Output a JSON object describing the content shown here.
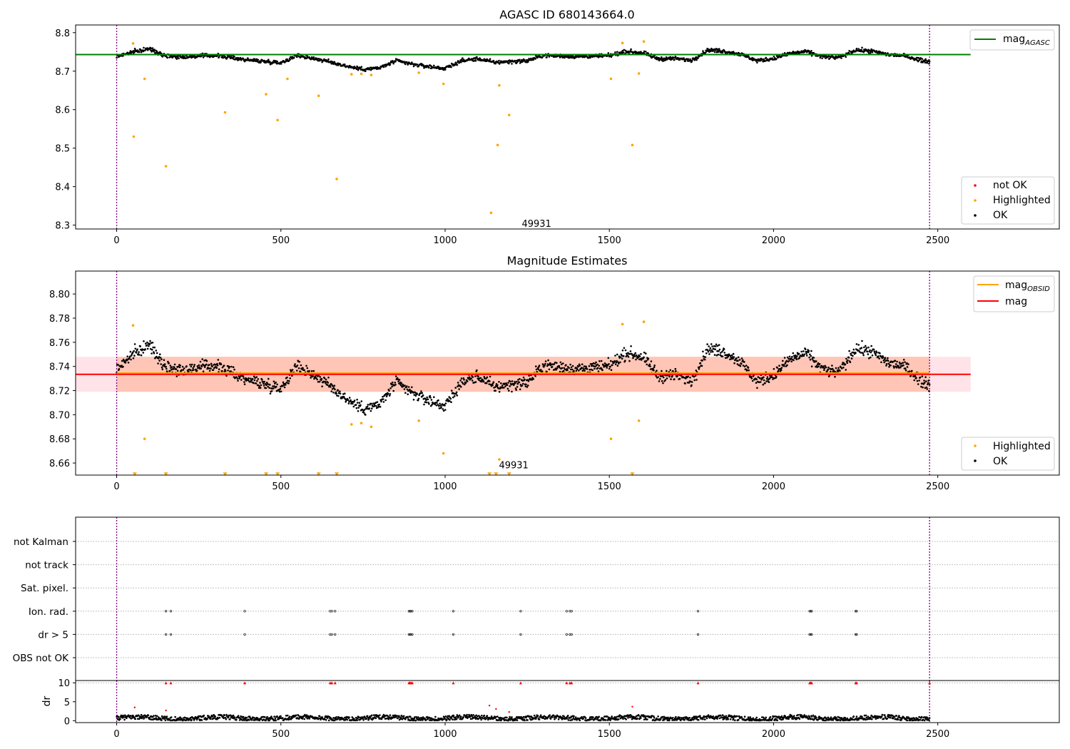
{
  "chart_data": [
    {
      "type": "scatter",
      "title": "AGASC ID 680143664.0",
      "xlim": [
        -125,
        2870
      ],
      "ylim": [
        8.29,
        8.82
      ],
      "x_ticks": [
        0,
        500,
        1000,
        1500,
        2000,
        2500
      ],
      "x_tick_labels": [
        "0",
        "500",
        "1000",
        "1500",
        "2000",
        "2500"
      ],
      "y_ticks": [
        8.3,
        8.4,
        8.5,
        8.6,
        8.7,
        8.8
      ],
      "y_tick_labels": [
        "8.3",
        "8.4",
        "8.5",
        "8.6",
        "8.7",
        "8.8"
      ],
      "vlines": [
        0,
        2475
      ],
      "vline_color": "#800080",
      "hline": {
        "name": "mag_AGASC",
        "y": 8.743,
        "x_end": 2600,
        "color": "#008000"
      },
      "legend_upper": {
        "position": "upper right",
        "entries": [
          {
            "main": "mag",
            "sub": "AGASC",
            "color": "#008000"
          }
        ]
      },
      "legend_lower": {
        "position": "lower right",
        "entries": [
          {
            "label": "not OK",
            "color": "#ff0000"
          },
          {
            "label": "Highlighted",
            "color": "#ffa500"
          },
          {
            "label": "OK",
            "color": "#000000"
          }
        ]
      },
      "annotation": {
        "text": "49931",
        "x": 1190,
        "y": 8.305
      },
      "ok_trend_x": [
        0,
        50,
        100,
        150,
        200,
        300,
        400,
        500,
        550,
        600,
        650,
        700,
        750,
        800,
        850,
        900,
        950,
        1000,
        1050,
        1100,
        1150,
        1200,
        1250,
        1300,
        1400,
        1500,
        1550,
        1600,
        1650,
        1700,
        1750,
        1800,
        1850,
        1900,
        1950,
        2000,
        2050,
        2100,
        2150,
        2200,
        2250,
        2300,
        2350,
        2400,
        2450,
        2475
      ],
      "ok_trend_y": [
        8.738,
        8.75,
        8.758,
        8.74,
        8.737,
        8.741,
        8.729,
        8.722,
        8.741,
        8.733,
        8.724,
        8.713,
        8.705,
        8.708,
        8.727,
        8.718,
        8.712,
        8.707,
        8.727,
        8.732,
        8.723,
        8.725,
        8.727,
        8.741,
        8.738,
        8.74,
        8.751,
        8.748,
        8.732,
        8.733,
        8.728,
        8.755,
        8.752,
        8.744,
        8.727,
        8.733,
        8.746,
        8.751,
        8.737,
        8.735,
        8.755,
        8.752,
        8.743,
        8.74,
        8.728,
        8.725
      ],
      "ok_scatter": 0.009,
      "highlighted_x": [
        50,
        52,
        85,
        150,
        330,
        455,
        490,
        520,
        615,
        670,
        715,
        745,
        775,
        920,
        995,
        1140,
        1160,
        1165,
        1195,
        1505,
        1540,
        1570,
        1590,
        1605
      ],
      "highlighted_y": [
        8.772,
        8.53,
        8.68,
        8.453,
        8.593,
        8.64,
        8.573,
        8.68,
        8.636,
        8.42,
        8.692,
        8.693,
        8.69,
        8.696,
        8.667,
        8.332,
        8.508,
        8.663,
        8.586,
        8.68,
        8.773,
        8.508,
        8.694,
        8.777
      ]
    },
    {
      "type": "scatter",
      "title": "Magnitude Estimates",
      "xlim": [
        -125,
        2870
      ],
      "ylim": [
        8.65,
        8.819
      ],
      "x_ticks": [
        0,
        500,
        1000,
        1500,
        2000,
        2500
      ],
      "x_tick_labels": [
        "0",
        "500",
        "1000",
        "1500",
        "2000",
        "2500"
      ],
      "y_ticks": [
        8.66,
        8.68,
        8.7,
        8.72,
        8.74,
        8.76,
        8.78,
        8.8
      ],
      "y_tick_labels": [
        "8.66",
        "8.68",
        "8.70",
        "8.72",
        "8.74",
        "8.76",
        "8.78",
        "8.80"
      ],
      "vlines": [
        0,
        2475
      ],
      "vline_color": "#800080",
      "band_pink": {
        "y_low": 8.719,
        "y_high": 8.748,
        "x_start": -125,
        "x_end": 2600,
        "color": "#ffc0cb"
      },
      "band_orange": {
        "y_low": 8.719,
        "y_high": 8.748,
        "x_start": 0,
        "x_end": 2475,
        "color": "#ffa07a"
      },
      "line_obsid": {
        "y": 8.7345,
        "x_start": 0,
        "x_end": 2475,
        "color": "#ffa500"
      },
      "line_mag": {
        "y": 8.7335,
        "x_start": -125,
        "x_end": 2600,
        "color": "#ff0000"
      },
      "legend_upper": {
        "position": "upper right",
        "entries": [
          {
            "main": "mag",
            "sub": "OBSID",
            "color": "#ffa500"
          },
          {
            "main": "mag",
            "sub": "",
            "color": "#ff0000"
          }
        ]
      },
      "legend_lower": {
        "position": "lower right",
        "entries": [
          {
            "label": "Highlighted",
            "color": "#ffa500"
          },
          {
            "label": "OK",
            "color": "#000000"
          }
        ]
      },
      "annotation": {
        "text": "49931",
        "x": 1190,
        "y": 8.658
      },
      "ok_trend_x": [
        0,
        50,
        100,
        150,
        200,
        300,
        400,
        500,
        550,
        600,
        650,
        700,
        750,
        800,
        850,
        900,
        950,
        1000,
        1050,
        1100,
        1150,
        1200,
        1250,
        1300,
        1400,
        1500,
        1550,
        1600,
        1650,
        1700,
        1750,
        1800,
        1850,
        1900,
        1950,
        2000,
        2050,
        2100,
        2150,
        2200,
        2250,
        2300,
        2350,
        2400,
        2450,
        2475
      ],
      "ok_trend_y": [
        8.738,
        8.75,
        8.758,
        8.74,
        8.737,
        8.741,
        8.729,
        8.722,
        8.741,
        8.733,
        8.724,
        8.713,
        8.705,
        8.708,
        8.727,
        8.718,
        8.712,
        8.707,
        8.727,
        8.732,
        8.723,
        8.725,
        8.727,
        8.741,
        8.738,
        8.74,
        8.751,
        8.748,
        8.732,
        8.733,
        8.728,
        8.755,
        8.752,
        8.744,
        8.727,
        8.733,
        8.746,
        8.751,
        8.737,
        8.735,
        8.755,
        8.752,
        8.743,
        8.74,
        8.728,
        8.725
      ],
      "ok_scatter": 0.009,
      "highlighted_x": [
        50,
        85,
        715,
        745,
        775,
        920,
        995,
        1165,
        1505,
        1540,
        1590,
        1605
      ],
      "highlighted_y": [
        8.774,
        8.68,
        8.692,
        8.693,
        8.69,
        8.695,
        8.668,
        8.663,
        8.68,
        8.775,
        8.695,
        8.777
      ],
      "below_range_x": [
        55,
        150,
        330,
        455,
        490,
        615,
        670,
        1135,
        1155,
        1195,
        1570
      ],
      "below_range_y": [
        8.651,
        8.651,
        8.651,
        8.651,
        8.651,
        8.651,
        8.651,
        8.651,
        8.651,
        8.651,
        8.651
      ]
    },
    {
      "type": "scatter",
      "title": "",
      "xlim": [
        -125,
        2870
      ],
      "x_ticks": [
        0,
        500,
        1000,
        1500,
        2000,
        2500
      ],
      "x_tick_labels": [
        "0",
        "500",
        "1000",
        "1500",
        "2000",
        "2500"
      ],
      "vlines": [
        0,
        2475
      ],
      "vline_color": "#800080",
      "flag_rows": [
        "not Kalman",
        "not track",
        "Sat. pixel.",
        "Ion. rad.",
        "dr > 5",
        "OBS not OK"
      ],
      "flag_events_x": [
        150,
        165,
        390,
        650,
        655,
        665,
        890,
        893,
        896,
        900,
        1025,
        1230,
        1370,
        1380,
        1385,
        1770,
        2110,
        2113,
        2116,
        2250,
        2253
      ],
      "flag_event_rows": [
        "Ion. rad.",
        "dr > 5"
      ],
      "dr_panel": {
        "ylabel": "dr",
        "ylim": [
          -0.5,
          10.6
        ],
        "y_ticks": [
          0,
          5,
          10
        ],
        "y_tick_labels": [
          "0",
          "5",
          "10"
        ],
        "clip_value": 10,
        "dr_typical": 0.7,
        "dr_spread": 0.6,
        "dr_high_x": [
          55,
          150,
          1135,
          1155,
          1195,
          1570
        ],
        "dr_high_y": [
          3.5,
          2.7,
          4.0,
          3.1,
          2.3,
          3.7
        ],
        "dr_capped_x": [
          150,
          165,
          390,
          650,
          655,
          665,
          890,
          893,
          896,
          900,
          1025,
          1230,
          1370,
          1380,
          1385,
          1770,
          2110,
          2113,
          2116,
          2250,
          2253,
          2475
        ]
      }
    }
  ]
}
